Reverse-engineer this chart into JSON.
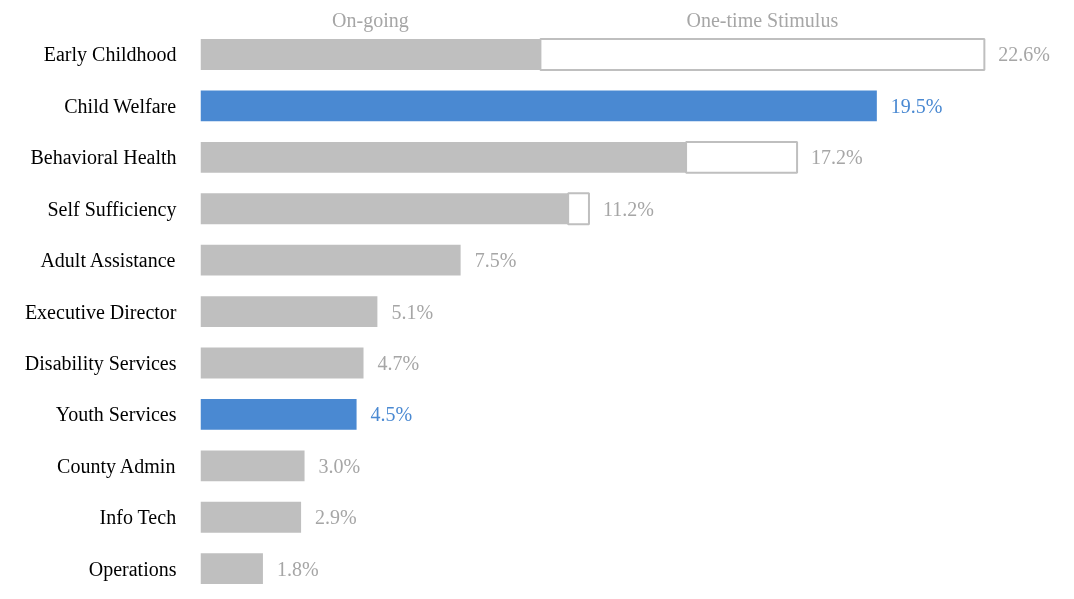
{
  "chart_data": {
    "type": "bar",
    "orientation": "horizontal",
    "stacked": true,
    "categories": [
      "Early Childhood",
      "Child Welfare",
      "Behavioral Health",
      "Self Sufficiency",
      "Adult Assistance",
      "Executive Director",
      "Disability Services",
      "Youth Services",
      "County Admin",
      "Info Tech",
      "Operations"
    ],
    "series": [
      {
        "name": "On-going",
        "color": "#bfbfbf",
        "colors": [
          "#bfbfbf",
          "#4a89d2",
          "#bfbfbf",
          "#bfbfbf",
          "#bfbfbf",
          "#bfbfbf",
          "#bfbfbf",
          "#4a89d2",
          "#bfbfbf",
          "#bfbfbf",
          "#bfbfbf"
        ],
        "values": [
          9.8,
          19.5,
          14.0,
          10.6,
          7.5,
          5.1,
          4.7,
          4.5,
          3.0,
          2.9,
          1.8
        ],
        "value_labels": [
          null,
          "19.5%",
          null,
          null,
          "7.5%",
          "5.1%",
          "4.7%",
          "4.5%",
          "3.0%",
          "2.9%",
          "1.8%"
        ]
      },
      {
        "name": "One-time Stimulus",
        "color": "#ffffff",
        "values": [
          12.8,
          null,
          3.2,
          0.6,
          null,
          null,
          null,
          null,
          null,
          null,
          null
        ]
      }
    ],
    "totals": [
      "22.6%",
      null,
      "17.2%",
      "11.2%",
      null,
      null,
      null,
      null,
      null,
      null,
      null
    ],
    "tick_labels": "y",
    "grid": false,
    "legend": "top"
  }
}
